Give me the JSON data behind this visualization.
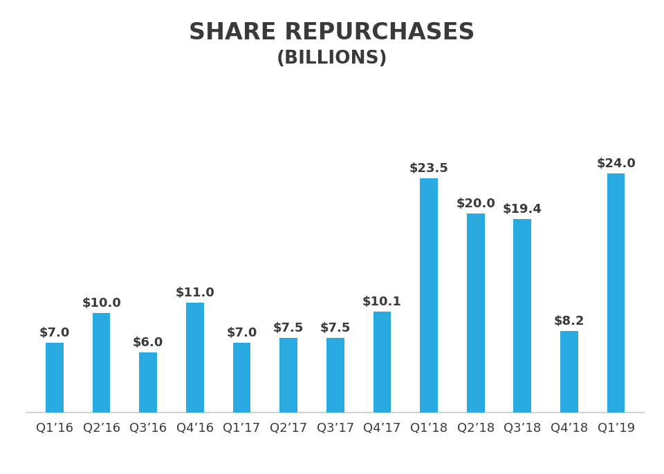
{
  "categories": [
    "Q1’16",
    "Q2’16",
    "Q3’16",
    "Q4’16",
    "Q1’17",
    "Q2’17",
    "Q3’17",
    "Q4’17",
    "Q1’18",
    "Q2’18",
    "Q3’18",
    "Q4’18",
    "Q1’19"
  ],
  "values": [
    7.0,
    10.0,
    6.0,
    11.0,
    7.0,
    7.5,
    7.5,
    10.1,
    23.5,
    20.0,
    19.4,
    8.2,
    24.0
  ],
  "bar_color": "#29ABE2",
  "title_line1": "SHARE REPURCHASES",
  "title_line2": "(BILLIONS)",
  "title_fontsize": 24,
  "subtitle_fontsize": 19,
  "label_fontsize": 13,
  "tick_fontsize": 13,
  "background_color": "#ffffff",
  "text_color": "#3a3a3a",
  "ylim": [
    0,
    30
  ],
  "bar_width": 0.38
}
